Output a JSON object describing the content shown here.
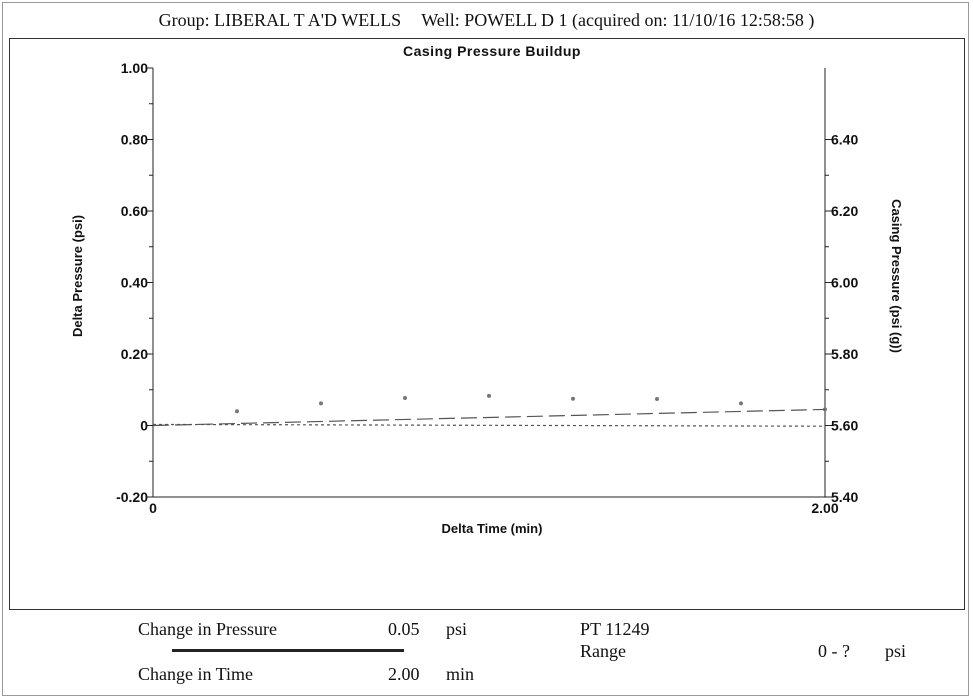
{
  "header": {
    "group": "Group: LIBERAL T A'D WELLS",
    "well": "Well: POWELL D 1 (acquired on: 11/10/16 12:58:58 )"
  },
  "chart_data": {
    "type": "scatter",
    "title": "Casing Pressure Buildup",
    "xlabel": "Delta Time (min)",
    "ylabel": "Delta Pressure (psi)",
    "y2label": "Casing Pressure (psi (g))",
    "xlim": [
      0,
      2.0
    ],
    "ylim": [
      -0.2,
      1.0
    ],
    "y2lim": [
      5.4,
      6.6
    ],
    "x_ticks": [
      {
        "value": 0,
        "label": "0"
      },
      {
        "value": 2.0,
        "label": "2.00"
      }
    ],
    "y_ticks": [
      {
        "value": -0.2,
        "label": "-0.20"
      },
      {
        "value": 0,
        "label": "0"
      },
      {
        "value": 0.2,
        "label": "0.20"
      },
      {
        "value": 0.4,
        "label": "0.40"
      },
      {
        "value": 0.6,
        "label": "0.60"
      },
      {
        "value": 0.8,
        "label": "0.80"
      },
      {
        "value": 1.0,
        "label": "1.00"
      }
    ],
    "y2_ticks": [
      {
        "value": 5.4,
        "label": "5.40"
      },
      {
        "value": 5.6,
        "label": "5.60"
      },
      {
        "value": 5.8,
        "label": "5.80"
      },
      {
        "value": 6.0,
        "label": "6.00"
      },
      {
        "value": 6.2,
        "label": "6.20"
      },
      {
        "value": 6.4,
        "label": "6.40"
      }
    ],
    "series": [
      {
        "type": "scatter",
        "x": [
          0.25,
          0.5,
          0.75,
          1.0,
          1.25,
          1.5,
          1.75,
          2.0
        ],
        "y": [
          0.04,
          0.062,
          0.077,
          0.083,
          0.075,
          0.074,
          0.062,
          0.045
        ],
        "color": "#777777"
      },
      {
        "type": "line",
        "style": "dashed",
        "x": [
          0,
          2.0
        ],
        "y": [
          0,
          0.045
        ],
        "color": "#555555"
      },
      {
        "type": "line",
        "style": "dotted",
        "x": [
          0,
          2.0
        ],
        "y": [
          0.003,
          -0.002
        ],
        "color": "#555555"
      }
    ],
    "grid": false,
    "legend": "none"
  },
  "footer": {
    "change_pressure_label": "Change in Pressure",
    "change_pressure_value": "0.05",
    "change_pressure_unit": "psi",
    "change_time_label": "Change in Time",
    "change_time_value": "2.00",
    "change_time_unit": "min",
    "pt_label": "PT 11249",
    "range_label": "Range",
    "range_value": "0 - ?",
    "range_unit": "psi"
  }
}
